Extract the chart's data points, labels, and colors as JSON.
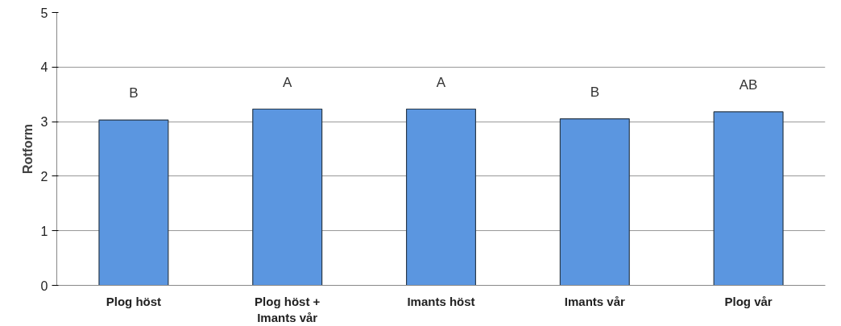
{
  "chart_data": {
    "type": "bar",
    "ylabel": "Rotform",
    "categories": [
      "Plog höst",
      "Plog höst +\nImants vår",
      "Imants höst",
      "Imants vår",
      "Plog vår"
    ],
    "values": [
      3.03,
      3.23,
      3.23,
      3.05,
      3.18
    ],
    "color": "#5b96e0",
    "ylim": [
      0,
      5
    ],
    "yticks": [
      0,
      1,
      2,
      3,
      4,
      5
    ],
    "grid": "y",
    "annotations": [
      {
        "text": "B",
        "x": "Plog höst",
        "y": 3.03
      },
      {
        "text": "A",
        "x": "Plog höst +\nImants vår",
        "y": 3.23
      },
      {
        "text": "A",
        "x": "Imants höst",
        "y": 3.23
      },
      {
        "text": "B",
        "x": "Imants vår",
        "y": 3.05
      },
      {
        "text": "AB",
        "x": "Plog vår",
        "y": 3.18
      }
    ]
  }
}
